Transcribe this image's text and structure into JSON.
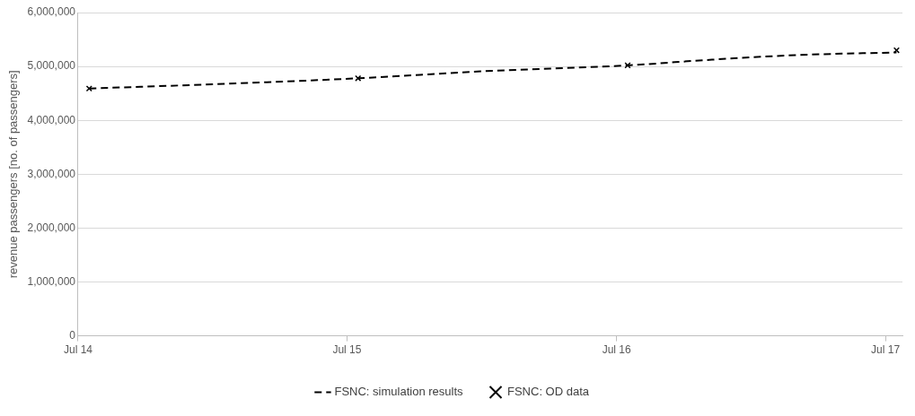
{
  "chart_data": {
    "type": "line",
    "ylabel": "revenue passengers [no. of passengers]",
    "xlim": [
      "2014-07-01",
      "2017-07-24"
    ],
    "xticks": [
      {
        "value": "2014-07-01",
        "label": "Jul 14"
      },
      {
        "value": "2015-07-01",
        "label": "Jul 15"
      },
      {
        "value": "2016-07-01",
        "label": "Jul 16"
      },
      {
        "value": "2017-07-01",
        "label": "Jul 17"
      }
    ],
    "ylim": [
      0,
      6000000
    ],
    "yticks": [
      {
        "value": 0,
        "label": "0"
      },
      {
        "value": 1000000,
        "label": "1,000,000"
      },
      {
        "value": 2000000,
        "label": "2,000,000"
      },
      {
        "value": 3000000,
        "label": "3,000,000"
      },
      {
        "value": 4000000,
        "label": "4,000,000"
      },
      {
        "value": 5000000,
        "label": "5,000,000"
      },
      {
        "value": 6000000,
        "label": "6,000,000"
      }
    ],
    "grid": "y",
    "legend": "bottom",
    "series": [
      {
        "name": "FSNC: simulation results",
        "color": "#000000",
        "line_style": "dashed",
        "marker": "none",
        "x": [
          "2014-07-16",
          "2015-01-01",
          "2015-07-16",
          "2016-01-01",
          "2016-07-16",
          "2016-11-01",
          "2017-03-01",
          "2017-07-16"
        ],
        "values": [
          4590000,
          4670000,
          4780000,
          4910000,
          5020000,
          5120000,
          5210000,
          5260000
        ]
      },
      {
        "name": "FSNC: OD data",
        "type": "scatter",
        "color": "#000000",
        "marker": "cross",
        "x": [
          "2014-07-16",
          "2015-07-16",
          "2016-07-16",
          "2017-07-16"
        ],
        "values": [
          4590000,
          4780000,
          5020000,
          5300000
        ]
      }
    ]
  }
}
